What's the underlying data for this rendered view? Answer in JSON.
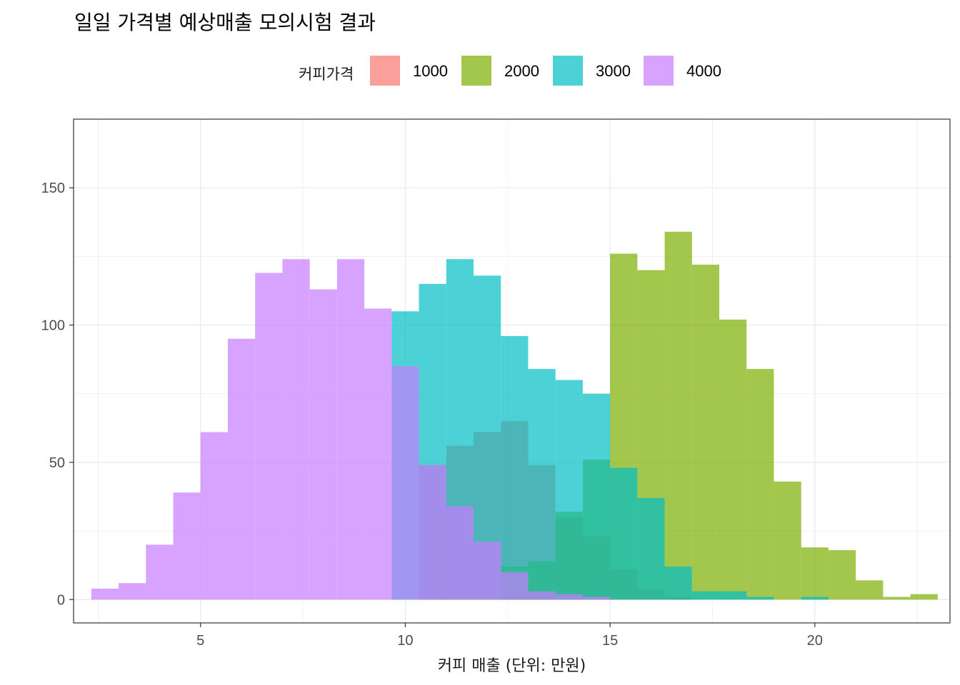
{
  "chart_data": {
    "type": "bar",
    "subtype": "overlapping-histogram",
    "title": "일일 가격별 예상매출 모의시험 결과",
    "xlabel": "커피 매출 (단위: 만원)",
    "ylabel": "",
    "xlim": [
      1.9,
      23.3
    ],
    "ylim": [
      -8.5,
      175
    ],
    "x_ticks": [
      5,
      10,
      15,
      20
    ],
    "y_ticks": [
      0,
      50,
      100,
      150
    ],
    "grid": true,
    "legend": {
      "title": "커피가격",
      "position": "top"
    },
    "bin_width": 0.6667,
    "series": [
      {
        "name": "1000",
        "color": "#F8766D",
        "bins": [
          [
            10.3333,
            11.0,
            49
          ],
          [
            11.0,
            11.6667,
            56
          ],
          [
            11.6667,
            12.3333,
            61
          ],
          [
            12.3333,
            13.0,
            65
          ],
          [
            13.0,
            13.6667,
            49
          ],
          [
            13.6667,
            14.3333,
            30
          ],
          [
            14.3333,
            15.0,
            23
          ],
          [
            15.0,
            15.6667,
            11
          ],
          [
            15.6667,
            16.3333,
            4
          ],
          [
            16.3333,
            17.0,
            1
          ]
        ]
      },
      {
        "name": "2000",
        "color": "#7CAE00",
        "bins": [
          [
            12.3333,
            13.0,
            12
          ],
          [
            13.0,
            13.6667,
            14
          ],
          [
            13.6667,
            14.3333,
            32
          ],
          [
            14.3333,
            15.0,
            51
          ],
          [
            15.0,
            15.6667,
            126
          ],
          [
            15.6667,
            16.3333,
            120
          ],
          [
            16.3333,
            17.0,
            134
          ],
          [
            17.0,
            17.6667,
            122
          ],
          [
            17.6667,
            18.3333,
            102
          ],
          [
            18.3333,
            19.0,
            84
          ],
          [
            19.0,
            19.6667,
            43
          ],
          [
            19.6667,
            20.3333,
            19
          ],
          [
            20.3333,
            21.0,
            18
          ],
          [
            21.0,
            21.6667,
            7
          ],
          [
            21.6667,
            22.3333,
            1
          ],
          [
            22.3333,
            23.0,
            2
          ]
        ]
      },
      {
        "name": "3000",
        "color": "#00BFC4",
        "bins": [
          [
            9.6667,
            10.3333,
            105
          ],
          [
            10.3333,
            11.0,
            115
          ],
          [
            11.0,
            11.6667,
            124
          ],
          [
            11.6667,
            12.3333,
            118
          ],
          [
            12.3333,
            13.0,
            96
          ],
          [
            13.0,
            13.6667,
            84
          ],
          [
            13.6667,
            14.3333,
            80
          ],
          [
            14.3333,
            15.0,
            75
          ],
          [
            15.0,
            15.6667,
            48
          ],
          [
            15.6667,
            16.3333,
            37
          ],
          [
            16.3333,
            17.0,
            12
          ],
          [
            17.0,
            17.6667,
            3
          ],
          [
            17.6667,
            18.3333,
            3
          ],
          [
            18.3333,
            19.0,
            1
          ],
          [
            19.6667,
            20.3333,
            1
          ]
        ]
      },
      {
        "name": "4000",
        "color": "#C77CFF",
        "bins": [
          [
            2.3333,
            3.0,
            4
          ],
          [
            3.0,
            3.6667,
            6
          ],
          [
            3.6667,
            4.3333,
            20
          ],
          [
            4.3333,
            5.0,
            39
          ],
          [
            5.0,
            5.6667,
            61
          ],
          [
            5.6667,
            6.3333,
            95
          ],
          [
            6.3333,
            7.0,
            119
          ],
          [
            7.0,
            7.6667,
            124
          ],
          [
            7.6667,
            8.3333,
            113
          ],
          [
            8.3333,
            9.0,
            124
          ],
          [
            9.0,
            9.6667,
            106
          ],
          [
            9.6667,
            10.3333,
            85
          ],
          [
            10.3333,
            11.0,
            49
          ],
          [
            11.0,
            11.6667,
            34
          ],
          [
            11.6667,
            12.3333,
            21
          ],
          [
            12.3333,
            13.0,
            10
          ],
          [
            13.0,
            13.6667,
            3
          ],
          [
            13.6667,
            14.3333,
            2
          ],
          [
            14.3333,
            15.0,
            1
          ]
        ]
      }
    ]
  }
}
